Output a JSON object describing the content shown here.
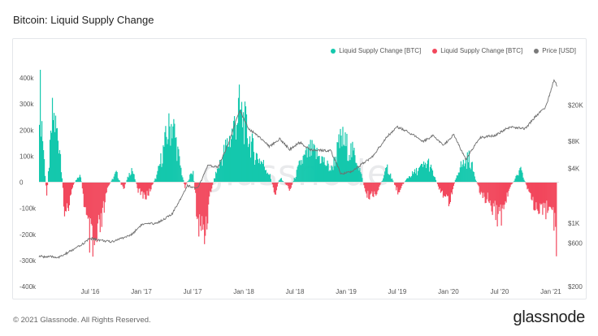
{
  "title": "Bitcoin: Liquid Supply Change",
  "footer": "© 2021 Glassnode. All Rights Reserved.",
  "brand": "glassnode",
  "watermark": "glassnode",
  "colors": {
    "positive": "#14c8ad",
    "negative": "#f2475c",
    "price": "#7a7a7a"
  },
  "legend": [
    {
      "label": "Liquid Supply Change [BTC]",
      "color": "#14c8ad"
    },
    {
      "label": "Liquid Supply Change [BTC]",
      "color": "#f2475c"
    },
    {
      "label": "Price [USD]",
      "color": "#7a7a7a"
    }
  ],
  "chart_data": {
    "type": "area",
    "x_range": [
      "2016-01",
      "2021-01"
    ],
    "x_ticks": [
      "Jul '16",
      "Jan '17",
      "Jul '17",
      "Jan '18",
      "Jul '18",
      "Jan '19",
      "Jul '19",
      "Jan '20",
      "Jul '20",
      "Jan '21"
    ],
    "y_left": {
      "ticks": [
        "400k",
        "300k",
        "200k",
        "100k",
        "0",
        "-100k",
        "-200k",
        "-300k",
        "-400k"
      ],
      "range": [
        -400000,
        400000
      ]
    },
    "y_right": {
      "ticks": [
        "$20K",
        "$8K",
        "$4K",
        "$1K",
        "$600",
        "$200"
      ],
      "scale": "log",
      "range": [
        200,
        40000
      ]
    },
    "series": [
      {
        "name": "Liquid Supply Change [BTC]",
        "anchors": [
          [
            2016.0,
            400000
          ],
          [
            2016.03,
            200000
          ],
          [
            2016.07,
            -60000
          ],
          [
            2016.13,
            280000
          ],
          [
            2016.2,
            150000
          ],
          [
            2016.25,
            -150000
          ],
          [
            2016.32,
            -20000
          ],
          [
            2016.4,
            40000
          ],
          [
            2016.47,
            -200000
          ],
          [
            2016.53,
            -300000
          ],
          [
            2016.6,
            -180000
          ],
          [
            2016.67,
            -20000
          ],
          [
            2016.75,
            40000
          ],
          [
            2016.82,
            -30000
          ],
          [
            2016.9,
            60000
          ],
          [
            2016.97,
            -40000
          ],
          [
            2017.05,
            -60000
          ],
          [
            2017.15,
            30000
          ],
          [
            2017.25,
            200000
          ],
          [
            2017.3,
            250000
          ],
          [
            2017.37,
            80000
          ],
          [
            2017.42,
            -20000
          ],
          [
            2017.5,
            50000
          ],
          [
            2017.55,
            -180000
          ],
          [
            2017.62,
            -200000
          ],
          [
            2017.67,
            -40000
          ],
          [
            2017.72,
            30000
          ],
          [
            2017.8,
            120000
          ],
          [
            2017.88,
            200000
          ],
          [
            2017.95,
            300000
          ],
          [
            2018.0,
            250000
          ],
          [
            2018.05,
            180000
          ],
          [
            2018.1,
            120000
          ],
          [
            2018.18,
            80000
          ],
          [
            2018.25,
            30000
          ],
          [
            2018.3,
            -50000
          ],
          [
            2018.35,
            20000
          ],
          [
            2018.45,
            -30000
          ],
          [
            2018.55,
            80000
          ],
          [
            2018.65,
            130000
          ],
          [
            2018.75,
            100000
          ],
          [
            2018.85,
            50000
          ],
          [
            2018.95,
            180000
          ],
          [
            2019.0,
            150000
          ],
          [
            2019.1,
            100000
          ],
          [
            2019.2,
            -60000
          ],
          [
            2019.3,
            -40000
          ],
          [
            2019.4,
            60000
          ],
          [
            2019.5,
            -40000
          ],
          [
            2019.6,
            20000
          ],
          [
            2019.7,
            50000
          ],
          [
            2019.8,
            80000
          ],
          [
            2019.9,
            -20000
          ],
          [
            2020.0,
            -80000
          ],
          [
            2020.1,
            60000
          ],
          [
            2020.2,
            100000
          ],
          [
            2020.3,
            -40000
          ],
          [
            2020.4,
            -80000
          ],
          [
            2020.5,
            -150000
          ],
          [
            2020.6,
            -20000
          ],
          [
            2020.7,
            50000
          ],
          [
            2020.8,
            -60000
          ],
          [
            2020.9,
            -150000
          ],
          [
            2021.0,
            -70000
          ],
          [
            2021.05,
            -250000
          ]
        ]
      },
      {
        "name": "Price [USD]",
        "anchors": [
          [
            2016.0,
            430
          ],
          [
            2016.2,
            420
          ],
          [
            2016.4,
            560
          ],
          [
            2016.5,
            680
          ],
          [
            2016.7,
            620
          ],
          [
            2016.9,
            740
          ],
          [
            2017.0,
            960
          ],
          [
            2017.15,
            1000
          ],
          [
            2017.3,
            1250
          ],
          [
            2017.45,
            2600
          ],
          [
            2017.55,
            2400
          ],
          [
            2017.65,
            4300
          ],
          [
            2017.75,
            4200
          ],
          [
            2017.85,
            7500
          ],
          [
            2017.96,
            17500
          ],
          [
            2018.05,
            11000
          ],
          [
            2018.15,
            9000
          ],
          [
            2018.25,
            7000
          ],
          [
            2018.35,
            8500
          ],
          [
            2018.45,
            6500
          ],
          [
            2018.55,
            7800
          ],
          [
            2018.65,
            6400
          ],
          [
            2018.85,
            6300
          ],
          [
            2018.95,
            3500
          ],
          [
            2019.05,
            3700
          ],
          [
            2019.25,
            5300
          ],
          [
            2019.4,
            9000
          ],
          [
            2019.5,
            11500
          ],
          [
            2019.6,
            10300
          ],
          [
            2019.75,
            8000
          ],
          [
            2019.85,
            9200
          ],
          [
            2019.95,
            7200
          ],
          [
            2020.05,
            9500
          ],
          [
            2020.17,
            5000
          ],
          [
            2020.3,
            8700
          ],
          [
            2020.45,
            9300
          ],
          [
            2020.6,
            11500
          ],
          [
            2020.75,
            11000
          ],
          [
            2020.85,
            15000
          ],
          [
            2020.95,
            19000
          ],
          [
            2021.0,
            29000
          ],
          [
            2021.03,
            38000
          ],
          [
            2021.06,
            33000
          ]
        ]
      }
    ],
    "legend_position": "top-right",
    "grid": false
  }
}
